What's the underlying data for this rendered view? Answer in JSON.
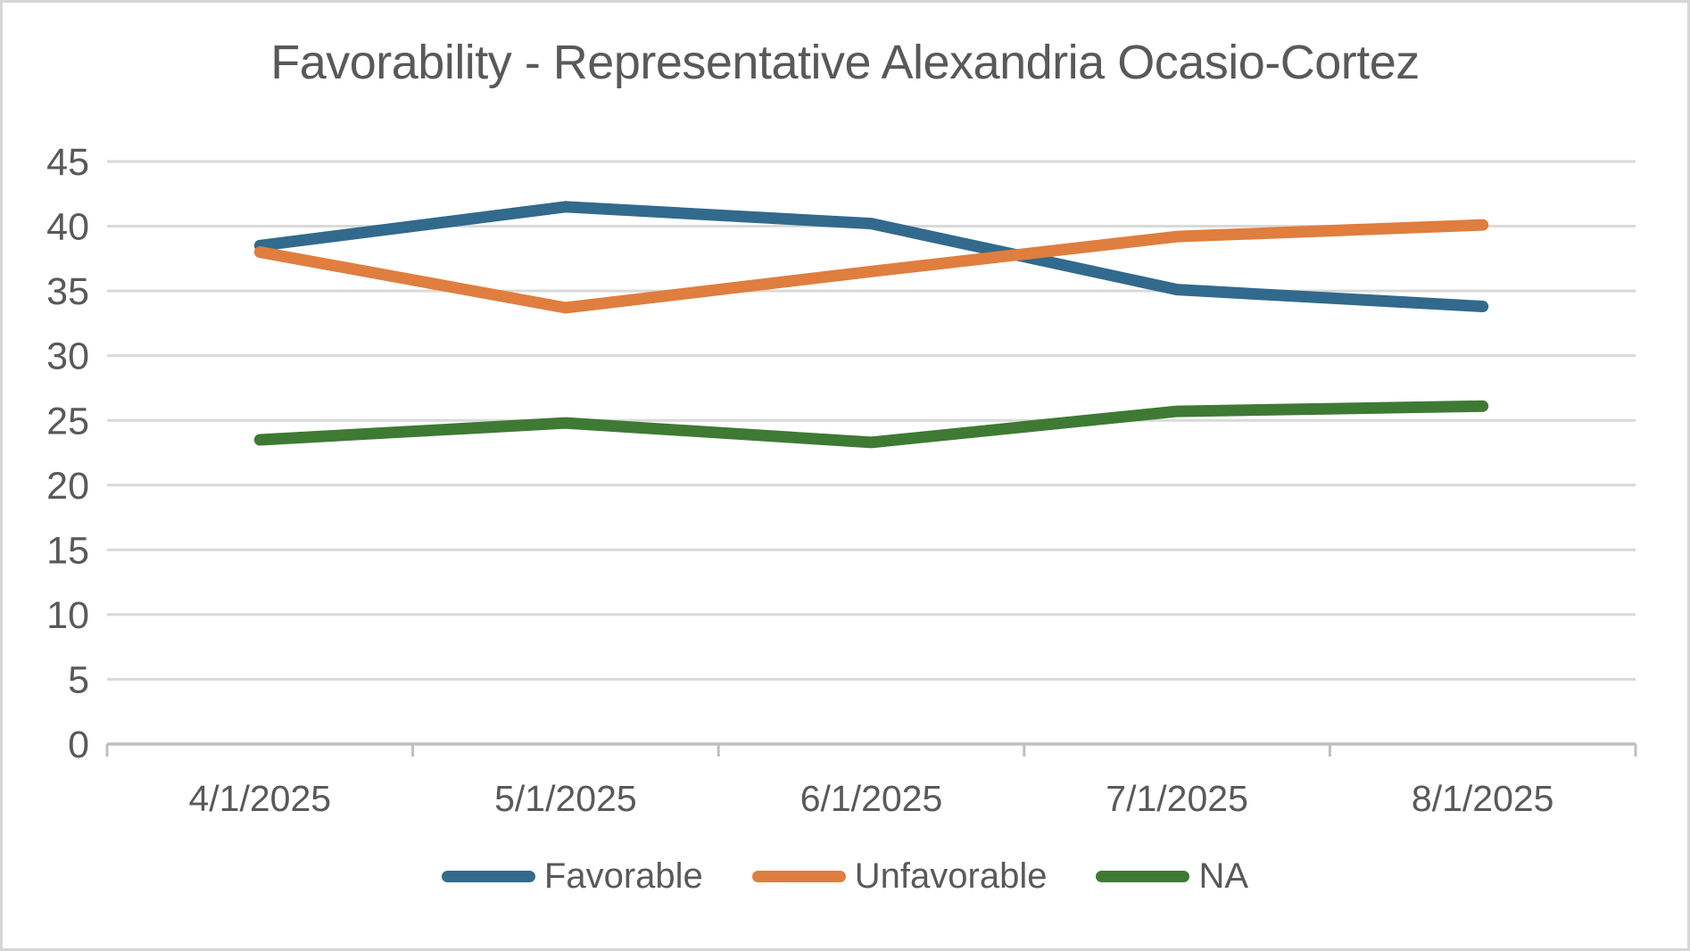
{
  "chart_data": {
    "type": "line",
    "title": "Favorability - Representative Alexandria Ocasio-Cortez",
    "categories": [
      "4/1/2025",
      "5/1/2025",
      "6/1/2025",
      "7/1/2025",
      "8/1/2025"
    ],
    "series": [
      {
        "name": "Favorable",
        "color": "#316A8C",
        "values": [
          38.5,
          41.5,
          40.2,
          35.1,
          33.8
        ]
      },
      {
        "name": "Unfavorable",
        "color": "#DF7E3E",
        "values": [
          38.0,
          33.7,
          36.5,
          39.2,
          40.1
        ]
      },
      {
        "name": "NA",
        "color": "#3E7A33",
        "values": [
          23.5,
          24.8,
          23.3,
          25.7,
          26.1
        ]
      }
    ],
    "ylim": [
      0,
      45
    ],
    "yticks": [
      0,
      5,
      10,
      15,
      20,
      25,
      30,
      35,
      40,
      45
    ],
    "grid": "horizontal",
    "legend_position": "bottom",
    "colors": {
      "title_text": "#595959",
      "axis_text": "#595959",
      "gridline": "#D9D9D9",
      "axis_line": "#BFBFBF"
    }
  }
}
